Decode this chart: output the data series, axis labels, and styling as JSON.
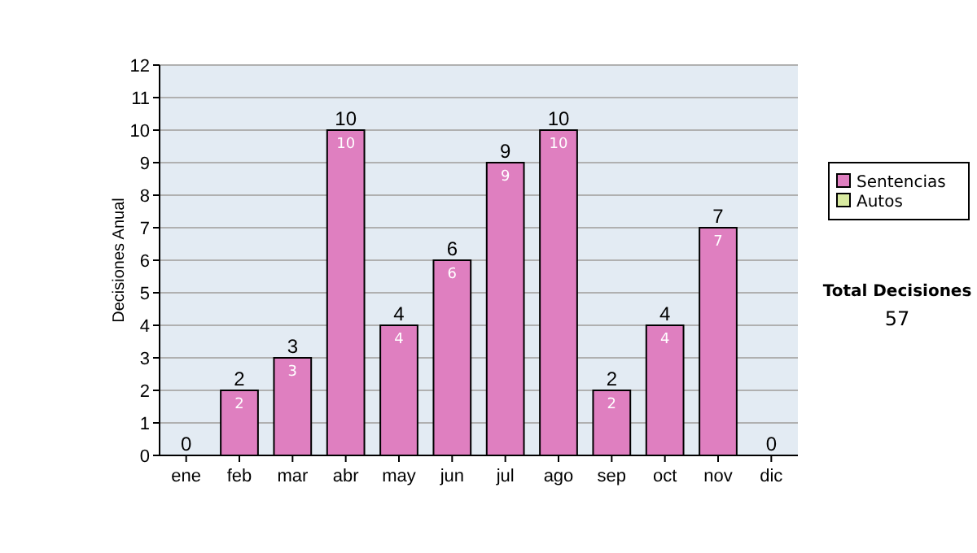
{
  "chart_data": {
    "type": "bar",
    "stacked": true,
    "ylabel": "Decisiones Anual",
    "categories": [
      "ene",
      "feb",
      "mar",
      "abr",
      "may",
      "jun",
      "jul",
      "ago",
      "sep",
      "oct",
      "nov",
      "dic"
    ],
    "series": [
      {
        "name": "Sentencias",
        "color": "#df7fc0",
        "values": [
          0,
          2,
          3,
          10,
          4,
          6,
          9,
          10,
          2,
          4,
          7,
          0
        ],
        "value_labels": [
          null,
          "2",
          "3",
          "10",
          "4",
          "6",
          "9",
          "10",
          "2",
          "4",
          "7",
          null
        ]
      },
      {
        "name": "Autos",
        "color": "#d8eaa0",
        "values": [
          0,
          0,
          0,
          0,
          0,
          0,
          0,
          0,
          0,
          0,
          0,
          0
        ]
      }
    ],
    "totals": [
      "0",
      "2",
      "3",
      "10",
      "4",
      "6",
      "9",
      "10",
      "2",
      "4",
      "7",
      "0"
    ],
    "ylim": [
      0,
      12
    ],
    "yticks": [
      0,
      1,
      2,
      3,
      4,
      5,
      6,
      7,
      8,
      9,
      10,
      11,
      12
    ],
    "grid": "y",
    "legend": "right",
    "annotations": [
      "Total Decisiones",
      "57"
    ]
  }
}
